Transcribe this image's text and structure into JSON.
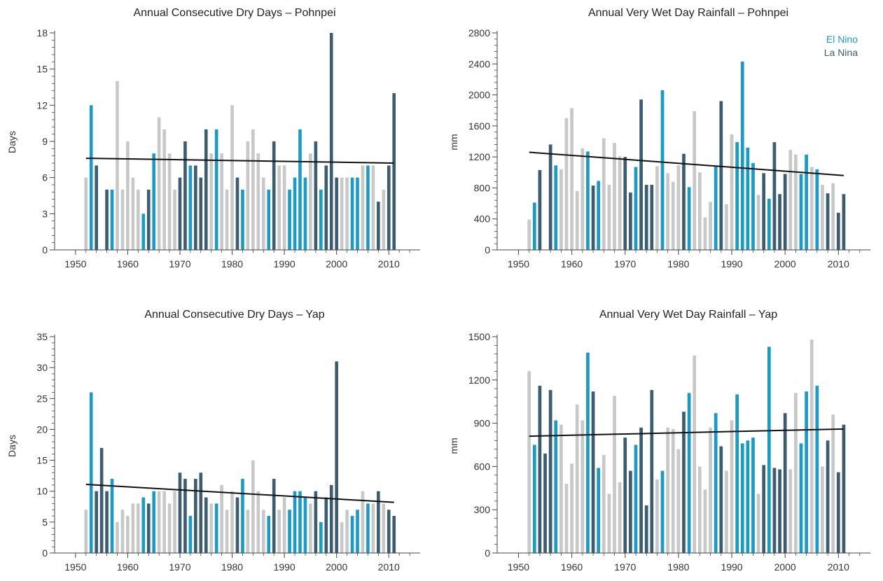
{
  "colors": {
    "neutral": "#c8c8c8",
    "el_nino": "#1a9bc6",
    "la_nina": "#3c5d70",
    "trend": "#111111",
    "axis": "#444444"
  },
  "legend": {
    "el_nino": "El Nino",
    "la_nina": "La Nina"
  },
  "chart_data": [
    {
      "type": "bar",
      "title": "Annual Consecutive Dry Days – Pohnpei",
      "ylabel": "Days",
      "xlabel": "",
      "xlim": [
        1946,
        2016
      ],
      "ylim": [
        0,
        18
      ],
      "yticks": [
        0,
        3,
        6,
        9,
        12,
        15,
        18
      ],
      "xticks": [
        1950,
        1960,
        1970,
        1980,
        1990,
        2000,
        2010
      ],
      "grid": false,
      "legend": false,
      "x": [
        1952,
        1953,
        1954,
        1956,
        1957,
        1958,
        1959,
        1960,
        1961,
        1962,
        1963,
        1964,
        1965,
        1966,
        1967,
        1968,
        1969,
        1970,
        1971,
        1972,
        1973,
        1974,
        1975,
        1976,
        1977,
        1978,
        1979,
        1980,
        1981,
        1982,
        1983,
        1984,
        1985,
        1986,
        1987,
        1988,
        1989,
        1990,
        1991,
        1992,
        1993,
        1994,
        1995,
        1996,
        1997,
        1998,
        1999,
        2000,
        2001,
        2002,
        2003,
        2004,
        2005,
        2006,
        2007,
        2008,
        2009,
        2010,
        2011
      ],
      "values": [
        6,
        12,
        7,
        5,
        5,
        14,
        5,
        9,
        6,
        5,
        3,
        5,
        8,
        11,
        10,
        8,
        5,
        6,
        9,
        7,
        7,
        6,
        10,
        8,
        10,
        8,
        5,
        12,
        6,
        5,
        9,
        10,
        8,
        6,
        5,
        9,
        7,
        7,
        5,
        6,
        10,
        6,
        8,
        9,
        5,
        7,
        18,
        6,
        6,
        6,
        6,
        6,
        7,
        7,
        7,
        4,
        5,
        7,
        13
      ],
      "phase": [
        "n",
        "e",
        "l",
        "l",
        "e",
        "n",
        "n",
        "n",
        "n",
        "n",
        "e",
        "l",
        "e",
        "n",
        "n",
        "n",
        "n",
        "l",
        "l",
        "e",
        "l",
        "l",
        "l",
        "n",
        "e",
        "n",
        "n",
        "n",
        "l",
        "e",
        "n",
        "n",
        "n",
        "n",
        "e",
        "l",
        "n",
        "n",
        "e",
        "e",
        "e",
        "e",
        "n",
        "l",
        "e",
        "l",
        "l",
        "l",
        "n",
        "n",
        "e",
        "e",
        "n",
        "e",
        "n",
        "l",
        "n",
        "l",
        "l"
      ],
      "trend": {
        "start": [
          1952,
          7.6
        ],
        "end": [
          2011,
          7.2
        ]
      }
    },
    {
      "type": "bar",
      "title": "Annual Very Wet Day Rainfall – Pohnpei",
      "ylabel": "mm",
      "xlabel": "",
      "xlim": [
        1946,
        2016
      ],
      "ylim": [
        0,
        2800
      ],
      "yticks": [
        0,
        400,
        800,
        1200,
        1600,
        2000,
        2400,
        2800
      ],
      "xticks": [
        1950,
        1960,
        1970,
        1980,
        1990,
        2000,
        2010
      ],
      "grid": false,
      "legend": "top-right",
      "x": [
        1952,
        1953,
        1954,
        1956,
        1957,
        1958,
        1959,
        1960,
        1961,
        1962,
        1963,
        1964,
        1965,
        1966,
        1967,
        1968,
        1969,
        1970,
        1971,
        1972,
        1973,
        1974,
        1975,
        1976,
        1977,
        1978,
        1979,
        1980,
        1981,
        1982,
        1983,
        1984,
        1985,
        1986,
        1987,
        1988,
        1989,
        1990,
        1991,
        1992,
        1993,
        1994,
        1995,
        1996,
        1997,
        1998,
        1999,
        2000,
        2001,
        2002,
        2003,
        2004,
        2005,
        2006,
        2007,
        2008,
        2009,
        2010,
        2011
      ],
      "values": [
        390,
        610,
        1030,
        1360,
        1090,
        1040,
        1700,
        1830,
        760,
        1310,
        1270,
        830,
        890,
        1440,
        840,
        1380,
        1210,
        1200,
        740,
        1070,
        1940,
        840,
        840,
        1080,
        2060,
        990,
        880,
        1090,
        1240,
        810,
        1790,
        1000,
        420,
        620,
        1080,
        1920,
        590,
        1490,
        1390,
        2430,
        1320,
        1120,
        710,
        990,
        660,
        1390,
        720,
        980,
        1290,
        1230,
        980,
        1230,
        1070,
        1040,
        840,
        730,
        860,
        480,
        720
      ],
      "phase": [
        "n",
        "e",
        "l",
        "l",
        "e",
        "n",
        "n",
        "n",
        "n",
        "n",
        "e",
        "l",
        "e",
        "n",
        "n",
        "n",
        "n",
        "l",
        "l",
        "e",
        "l",
        "l",
        "l",
        "n",
        "e",
        "n",
        "n",
        "n",
        "l",
        "e",
        "n",
        "n",
        "n",
        "n",
        "e",
        "l",
        "n",
        "n",
        "e",
        "e",
        "e",
        "e",
        "n",
        "l",
        "e",
        "l",
        "l",
        "l",
        "n",
        "n",
        "e",
        "e",
        "n",
        "e",
        "n",
        "l",
        "n",
        "l",
        "l"
      ],
      "trend": {
        "start": [
          1952,
          1260
        ],
        "end": [
          2011,
          960
        ]
      }
    },
    {
      "type": "bar",
      "title": "Annual Consecutive Dry Days – Yap",
      "ylabel": "Days",
      "xlabel": "",
      "xlim": [
        1946,
        2016
      ],
      "ylim": [
        0,
        35
      ],
      "yticks": [
        0,
        5,
        10,
        15,
        20,
        25,
        30,
        35
      ],
      "xticks": [
        1950,
        1960,
        1970,
        1980,
        1990,
        2000,
        2010
      ],
      "grid": false,
      "legend": false,
      "x": [
        1952,
        1953,
        1954,
        1955,
        1956,
        1957,
        1958,
        1959,
        1960,
        1961,
        1962,
        1963,
        1964,
        1965,
        1966,
        1967,
        1968,
        1969,
        1970,
        1971,
        1972,
        1973,
        1974,
        1975,
        1976,
        1977,
        1978,
        1979,
        1980,
        1981,
        1982,
        1983,
        1984,
        1985,
        1986,
        1987,
        1988,
        1989,
        1990,
        1991,
        1992,
        1993,
        1994,
        1995,
        1996,
        1997,
        1998,
        1999,
        2000,
        2001,
        2002,
        2003,
        2004,
        2005,
        2006,
        2007,
        2008,
        2009,
        2010,
        2011
      ],
      "values": [
        7,
        26,
        10,
        17,
        10,
        12,
        5,
        7,
        6,
        8,
        8,
        9,
        8,
        10,
        10,
        10,
        8,
        10,
        13,
        12,
        6,
        12,
        13,
        9,
        8,
        8,
        11,
        7,
        10,
        9,
        12,
        7,
        15,
        10,
        7,
        6,
        12,
        7,
        9,
        7,
        10,
        10,
        9,
        8,
        10,
        5,
        9,
        11,
        31,
        5,
        7,
        6,
        7,
        10,
        8,
        8,
        10,
        8,
        7,
        6
      ],
      "phase": [
        "n",
        "e",
        "l",
        "l",
        "l",
        "e",
        "n",
        "n",
        "n",
        "n",
        "n",
        "e",
        "l",
        "e",
        "n",
        "n",
        "n",
        "n",
        "l",
        "l",
        "e",
        "l",
        "l",
        "l",
        "n",
        "e",
        "n",
        "n",
        "n",
        "l",
        "e",
        "n",
        "n",
        "n",
        "n",
        "e",
        "l",
        "n",
        "n",
        "e",
        "e",
        "e",
        "e",
        "n",
        "l",
        "e",
        "l",
        "l",
        "l",
        "n",
        "n",
        "e",
        "e",
        "n",
        "e",
        "n",
        "l",
        "n",
        "l",
        "l"
      ],
      "trend": {
        "start": [
          1952,
          11.1
        ],
        "end": [
          2011,
          8.2
        ]
      }
    },
    {
      "type": "bar",
      "title": "Annual Very Wet Day Rainfall – Yap",
      "ylabel": "mm",
      "xlabel": "",
      "xlim": [
        1946,
        2016
      ],
      "ylim": [
        0,
        1500
      ],
      "yticks": [
        0,
        300,
        600,
        900,
        1200,
        1500
      ],
      "xticks": [
        1950,
        1960,
        1970,
        1980,
        1990,
        2000,
        2010
      ],
      "grid": false,
      "legend": false,
      "x": [
        1952,
        1953,
        1954,
        1955,
        1956,
        1957,
        1958,
        1959,
        1960,
        1961,
        1962,
        1963,
        1964,
        1965,
        1966,
        1967,
        1968,
        1969,
        1970,
        1971,
        1972,
        1973,
        1974,
        1975,
        1976,
        1977,
        1978,
        1979,
        1980,
        1981,
        1982,
        1983,
        1984,
        1985,
        1986,
        1987,
        1988,
        1989,
        1990,
        1991,
        1992,
        1993,
        1994,
        1995,
        1996,
        1997,
        1998,
        1999,
        2000,
        2001,
        2002,
        2003,
        2004,
        2005,
        2006,
        2007,
        2008,
        2009,
        2010,
        2011
      ],
      "values": [
        1260,
        750,
        1160,
        690,
        1130,
        920,
        890,
        480,
        620,
        1030,
        920,
        1390,
        1120,
        590,
        680,
        410,
        1090,
        490,
        800,
        570,
        750,
        870,
        330,
        1130,
        510,
        570,
        870,
        860,
        720,
        980,
        1110,
        1370,
        600,
        440,
        870,
        970,
        740,
        570,
        920,
        1100,
        760,
        780,
        800,
        410,
        610,
        1430,
        590,
        580,
        970,
        580,
        1110,
        760,
        1120,
        1480,
        1160,
        600,
        780,
        960,
        560,
        890
      ],
      "phase": [
        "n",
        "e",
        "l",
        "l",
        "l",
        "e",
        "n",
        "n",
        "n",
        "n",
        "n",
        "e",
        "l",
        "e",
        "n",
        "n",
        "n",
        "n",
        "l",
        "l",
        "e",
        "l",
        "l",
        "l",
        "n",
        "e",
        "n",
        "n",
        "n",
        "l",
        "e",
        "n",
        "n",
        "n",
        "n",
        "e",
        "l",
        "n",
        "n",
        "e",
        "e",
        "e",
        "e",
        "n",
        "l",
        "e",
        "l",
        "l",
        "l",
        "n",
        "n",
        "e",
        "e",
        "n",
        "e",
        "n",
        "l",
        "n",
        "l",
        "l"
      ],
      "trend": {
        "start": [
          1952,
          810
        ],
        "end": [
          2011,
          860
        ]
      }
    }
  ]
}
